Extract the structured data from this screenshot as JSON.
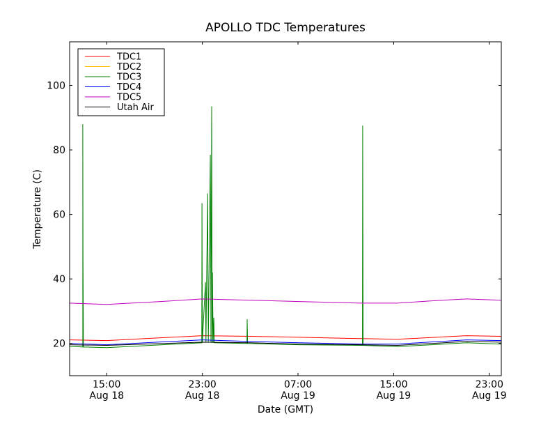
{
  "chart_data": {
    "type": "line",
    "title": "APOLLO TDC Temperatures",
    "xlabel": "Date (GMT)",
    "ylabel": "Temperature (C)",
    "x_units": "hours since Aug 18 00:00 GMT",
    "xlim": [
      11.9,
      48
    ],
    "ylim": [
      10,
      113.5
    ],
    "yticks": [
      20,
      40,
      60,
      80,
      100
    ],
    "xticks": [
      {
        "value": 15,
        "time": "15:00",
        "date": "Aug 18"
      },
      {
        "value": 23,
        "time": "23:00",
        "date": "Aug 18"
      },
      {
        "value": 31,
        "time": "07:00",
        "date": "Aug 19"
      },
      {
        "value": 39,
        "time": "15:00",
        "date": "Aug 19"
      },
      {
        "value": 47,
        "time": "23:00",
        "date": "Aug 19"
      }
    ],
    "legend_position": "top-left",
    "series": [
      {
        "name": "TDC1",
        "color": "#ff0000",
        "points": [
          [
            11.9,
            21.1
          ],
          [
            15,
            20.9
          ],
          [
            23,
            22.4
          ],
          [
            27,
            22.2
          ],
          [
            31.1,
            21.9
          ],
          [
            36.3,
            21.5
          ],
          [
            39.3,
            21.3
          ],
          [
            45.1,
            22.4
          ],
          [
            48,
            22.2
          ]
        ]
      },
      {
        "name": "TDC2",
        "color": "#ffbf00",
        "points": []
      },
      {
        "name": "TDC3",
        "color": "#008000",
        "points": [
          [
            11.9,
            19.1
          ],
          [
            13.0,
            18.9
          ],
          [
            13.0,
            88
          ],
          [
            13.02,
            47
          ],
          [
            13.05,
            18.9
          ],
          [
            15,
            18.7
          ],
          [
            22.95,
            20.2
          ],
          [
            22.97,
            63.5
          ],
          [
            23.0,
            20.2
          ],
          [
            23.26,
            39
          ],
          [
            23.3,
            20.2
          ],
          [
            23.44,
            66.5
          ],
          [
            23.5,
            20.2
          ],
          [
            23.67,
            78.5
          ],
          [
            23.72,
            20.2
          ],
          [
            23.78,
            93.5
          ],
          [
            23.82,
            20.2
          ],
          [
            23.84,
            42
          ],
          [
            23.9,
            20.2
          ],
          [
            23.96,
            28
          ],
          [
            24.0,
            20.2
          ],
          [
            26.73,
            20.0
          ],
          [
            26.75,
            27.5
          ],
          [
            26.78,
            20.0
          ],
          [
            31.1,
            19.6
          ],
          [
            36.39,
            19.4
          ],
          [
            36.41,
            87.5
          ],
          [
            36.44,
            19.4
          ],
          [
            39.3,
            19
          ],
          [
            45.1,
            20.2
          ],
          [
            48,
            19.8
          ]
        ]
      },
      {
        "name": "TDC4",
        "color": "#0000ff",
        "points": [
          [
            11.9,
            20
          ],
          [
            15,
            19.6
          ],
          [
            23,
            21.1
          ],
          [
            27,
            20.6
          ],
          [
            31.1,
            20.2
          ],
          [
            36.3,
            19.8
          ],
          [
            39.3,
            19.8
          ],
          [
            45.1,
            21.1
          ],
          [
            48,
            20.9
          ]
        ]
      },
      {
        "name": "TDC5",
        "color": "#bf00bf",
        "points": [
          [
            11.9,
            32.5
          ],
          [
            15,
            32.1
          ],
          [
            19.5,
            33
          ],
          [
            23,
            33.8
          ],
          [
            27,
            33.4
          ],
          [
            31.1,
            33
          ],
          [
            36.3,
            32.5
          ],
          [
            39.3,
            32.5
          ],
          [
            42.2,
            33.2
          ],
          [
            45.1,
            33.8
          ],
          [
            48,
            33.4
          ]
        ]
      },
      {
        "name": "Utah Air",
        "color": "#000000",
        "points": [
          [
            11.9,
            19.6
          ],
          [
            15,
            19.4
          ],
          [
            23,
            20.4
          ],
          [
            27,
            20.2
          ],
          [
            31.1,
            19.8
          ],
          [
            36.3,
            19.6
          ],
          [
            39.3,
            19.4
          ],
          [
            45.1,
            20.6
          ],
          [
            48,
            20.4
          ]
        ]
      }
    ]
  }
}
